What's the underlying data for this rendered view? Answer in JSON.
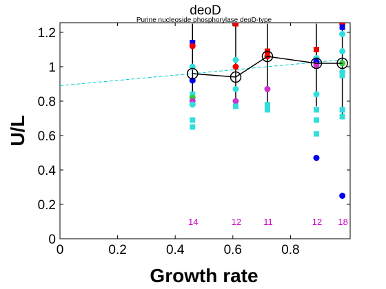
{
  "chart_data": {
    "type": "scatter",
    "title": "deoD",
    "subtitle": "Purine nucleoside phosphorylase deoD-type",
    "xlabel": "Growth rate",
    "ylabel": "U/L",
    "xlim": [
      0,
      1.0
    ],
    "ylim": [
      0,
      1.25
    ],
    "x_ticks": [
      0,
      0.2,
      0.4,
      0.6,
      0.8
    ],
    "y_ticks": [
      0,
      0.2,
      0.4,
      0.6,
      0.8,
      1,
      1.2
    ],
    "x_tick_labels": [
      "0",
      "0.2",
      "0.4",
      "0.6",
      "0.8"
    ],
    "y_tick_labels": [
      "0",
      "0.2",
      "0.4",
      "0.6",
      "0.8",
      "1",
      "1.2"
    ],
    "grid": false,
    "trend_line": {
      "x": [
        0,
        0.98
      ],
      "y": [
        0.89,
        1.04
      ],
      "color": "#00cccc",
      "style": "dashed"
    },
    "mean_series": {
      "x": [
        0.46,
        0.61,
        0.72,
        0.89,
        0.98
      ],
      "y": [
        0.96,
        0.94,
        1.06,
        1.02,
        1.02
      ],
      "err_low": [
        0.81,
        0.81,
        0.77,
        0.77,
        0.71
      ],
      "err_high": [
        1.25,
        1.25,
        1.25,
        1.25,
        1.25
      ],
      "color": "#000000"
    },
    "points": [
      {
        "x": 0.46,
        "y": 1.14,
        "color": "#0000ee",
        "marker": "square"
      },
      {
        "x": 0.46,
        "y": 1.12,
        "color": "#ee0000",
        "marker": "circle"
      },
      {
        "x": 0.46,
        "y": 1.0,
        "color": "#33dddd",
        "marker": "circle"
      },
      {
        "x": 0.46,
        "y": 0.92,
        "color": "#0000ee",
        "marker": "circle"
      },
      {
        "x": 0.46,
        "y": 0.84,
        "color": "#33dddd",
        "marker": "square"
      },
      {
        "x": 0.46,
        "y": 0.82,
        "color": "#33cc33",
        "marker": "circle"
      },
      {
        "x": 0.46,
        "y": 0.8,
        "color": "#cc33cc",
        "marker": "circle"
      },
      {
        "x": 0.46,
        "y": 0.78,
        "color": "#33dddd",
        "marker": "circle"
      },
      {
        "x": 0.46,
        "y": 0.69,
        "color": "#33dddd",
        "marker": "square"
      },
      {
        "x": 0.46,
        "y": 0.65,
        "color": "#33dddd",
        "marker": "square"
      },
      {
        "x": 0.61,
        "y": 1.25,
        "color": "#ee0000",
        "marker": "square"
      },
      {
        "x": 0.61,
        "y": 1.04,
        "color": "#33dddd",
        "marker": "circle"
      },
      {
        "x": 0.61,
        "y": 1.0,
        "color": "#ee0000",
        "marker": "circle"
      },
      {
        "x": 0.61,
        "y": 0.87,
        "color": "#33dddd",
        "marker": "circle"
      },
      {
        "x": 0.61,
        "y": 0.8,
        "color": "#cc33cc",
        "marker": "circle"
      },
      {
        "x": 0.61,
        "y": 0.77,
        "color": "#33dddd",
        "marker": "square"
      },
      {
        "x": 0.72,
        "y": 1.09,
        "color": "#ee0000",
        "marker": "square"
      },
      {
        "x": 0.72,
        "y": 1.06,
        "color": "#ee0000",
        "marker": "circle"
      },
      {
        "x": 0.72,
        "y": 0.87,
        "color": "#cc33cc",
        "marker": "circle"
      },
      {
        "x": 0.72,
        "y": 0.78,
        "color": "#33dddd",
        "marker": "square"
      },
      {
        "x": 0.72,
        "y": 0.75,
        "color": "#33dddd",
        "marker": "square"
      },
      {
        "x": 0.89,
        "y": 1.1,
        "color": "#ee0000",
        "marker": "square"
      },
      {
        "x": 0.89,
        "y": 1.05,
        "color": "#33dddd",
        "marker": "circle"
      },
      {
        "x": 0.89,
        "y": 1.03,
        "color": "#0000ee",
        "marker": "circle"
      },
      {
        "x": 0.89,
        "y": 1.01,
        "color": "#cc33cc",
        "marker": "circle"
      },
      {
        "x": 0.89,
        "y": 0.84,
        "color": "#33dddd",
        "marker": "circle"
      },
      {
        "x": 0.89,
        "y": 0.75,
        "color": "#33dddd",
        "marker": "square"
      },
      {
        "x": 0.89,
        "y": 0.69,
        "color": "#33dddd",
        "marker": "square"
      },
      {
        "x": 0.89,
        "y": 0.61,
        "color": "#33dddd",
        "marker": "square"
      },
      {
        "x": 0.89,
        "y": 0.47,
        "color": "#0000ee",
        "marker": "circle"
      },
      {
        "x": 0.98,
        "y": 1.25,
        "color": "#ee0000",
        "marker": "circle"
      },
      {
        "x": 0.98,
        "y": 1.23,
        "color": "#0000ee",
        "marker": "square"
      },
      {
        "x": 0.98,
        "y": 1.19,
        "color": "#33dddd",
        "marker": "circle"
      },
      {
        "x": 0.98,
        "y": 1.09,
        "color": "#33dddd",
        "marker": "circle"
      },
      {
        "x": 0.98,
        "y": 1.02,
        "color": "#33cc33",
        "marker": "circle"
      },
      {
        "x": 0.98,
        "y": 0.97,
        "color": "#33dddd",
        "marker": "circle"
      },
      {
        "x": 0.98,
        "y": 0.95,
        "color": "#33dddd",
        "marker": "square"
      },
      {
        "x": 0.98,
        "y": 0.75,
        "color": "#33dddd",
        "marker": "square"
      },
      {
        "x": 0.98,
        "y": 0.71,
        "color": "#33dddd",
        "marker": "square"
      },
      {
        "x": 0.98,
        "y": 0.25,
        "color": "#0000ee",
        "marker": "circle"
      }
    ],
    "count_labels": [
      {
        "x": 0.46,
        "text": "14"
      },
      {
        "x": 0.61,
        "text": "12"
      },
      {
        "x": 0.72,
        "text": "11"
      },
      {
        "x": 0.89,
        "text": "12"
      },
      {
        "x": 0.98,
        "text": "18"
      }
    ]
  }
}
